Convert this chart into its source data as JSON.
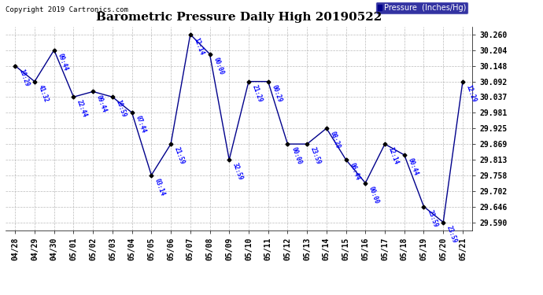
{
  "title": "Barometric Pressure Daily High 20190522",
  "copyright": "Copyright 2019 Cartronics.com",
  "legend_label": "Pressure  (Inches/Hg)",
  "x_labels": [
    "04/28",
    "04/29",
    "04/30",
    "05/01",
    "05/02",
    "05/03",
    "05/04",
    "05/05",
    "05/06",
    "05/07",
    "05/08",
    "05/09",
    "05/10",
    "05/11",
    "05/12",
    "05/13",
    "05/14",
    "05/15",
    "05/16",
    "05/17",
    "05/18",
    "05/19",
    "05/20",
    "05/21"
  ],
  "y_values": [
    30.148,
    30.092,
    30.204,
    30.037,
    30.056,
    30.037,
    29.981,
    29.758,
    29.869,
    30.26,
    30.19,
    29.813,
    30.092,
    30.092,
    29.869,
    29.869,
    29.925,
    29.813,
    29.73,
    29.869,
    29.83,
    29.646,
    29.59,
    30.092
  ],
  "time_labels": [
    "10:29",
    "41:32",
    "09:44",
    "22:44",
    "09:44",
    "10:59",
    "07:44",
    "03:14",
    "21:59",
    "12:14",
    "00:00",
    "32:59",
    "21:29",
    "00:29",
    "00:00",
    "23:59",
    "08:29",
    "06:44",
    "00:00",
    "12:14",
    "00:44",
    "23:59",
    "23:59",
    "12:29"
  ],
  "ylim_min": 29.562,
  "ylim_max": 30.288,
  "line_color": "#00008B",
  "marker_color": "#000000",
  "label_color": "#0000FF",
  "bg_color": "#FFFFFF",
  "grid_color": "#AAAAAA",
  "title_fontsize": 11,
  "axis_fontsize": 7,
  "label_fontsize": 5.5,
  "copyright_fontsize": 6.5,
  "legend_fontsize": 7,
  "y_ticks": [
    29.59,
    29.646,
    29.702,
    29.758,
    29.813,
    29.869,
    29.925,
    29.981,
    30.037,
    30.092,
    30.148,
    30.204,
    30.26
  ]
}
